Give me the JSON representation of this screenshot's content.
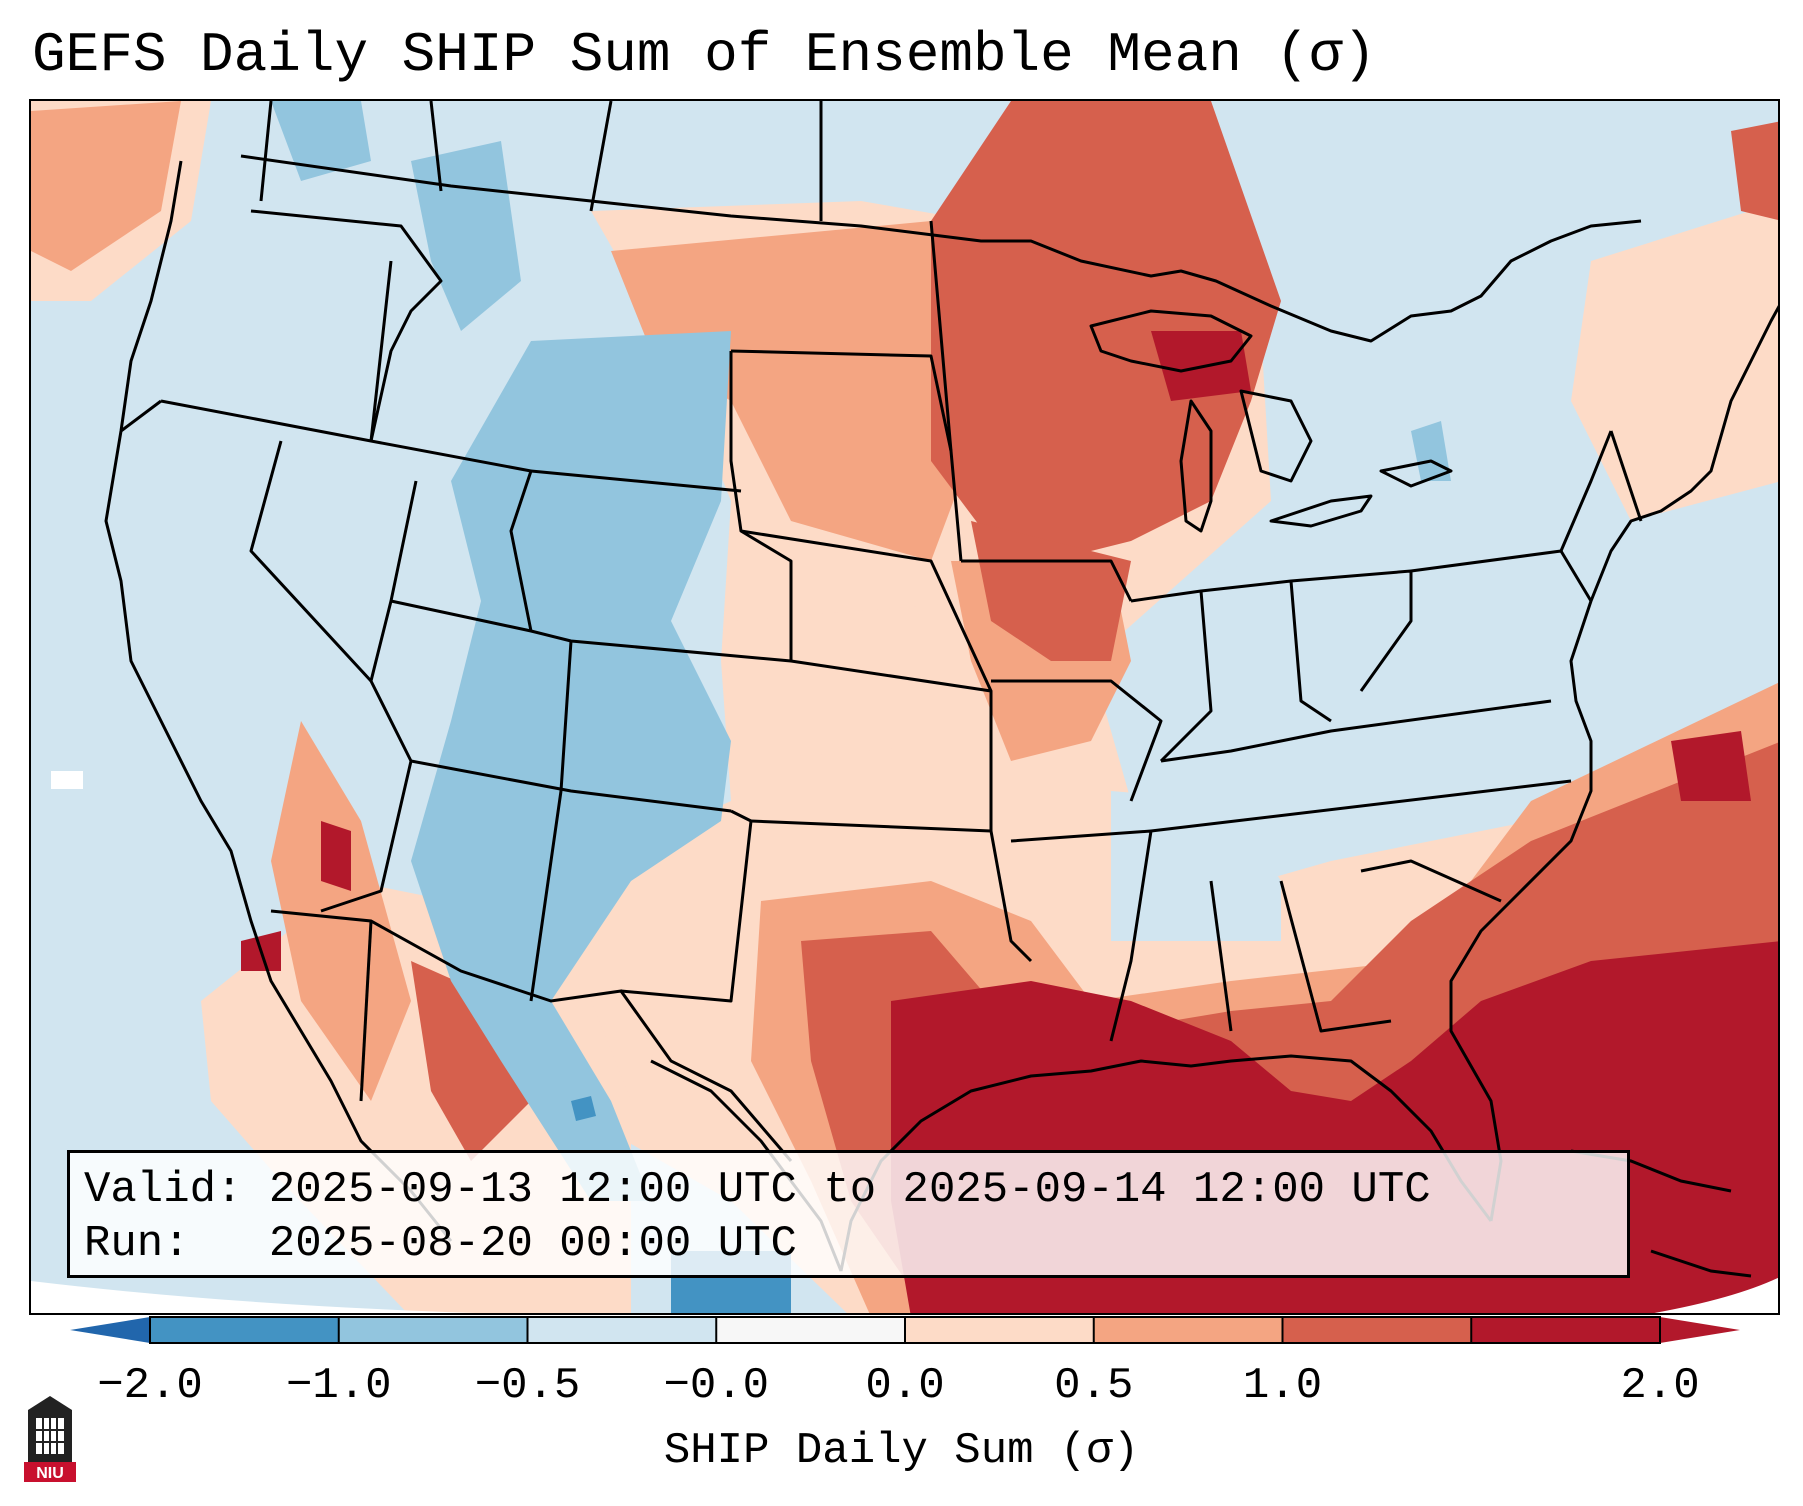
{
  "title": "GEFS Daily SHIP Sum of Ensemble Mean (σ)",
  "info": {
    "valid_label": "Valid:",
    "valid_value": "2025-09-13 12:00 UTC to 2025-09-14 12:00 UTC",
    "run_label": "Run:",
    "run_value": "2025-08-20 00:00 UTC"
  },
  "colorbar": {
    "label": "SHIP Daily Sum (σ)",
    "ticks": [
      "−2.0",
      "−1.0",
      "−0.5",
      "−0.0",
      "0.0",
      "0.5",
      "1.0",
      "2.0"
    ],
    "colors": [
      "#4393c3",
      "#92c5de",
      "#d1e5f0",
      "#f7f7f7",
      "#fddbc7",
      "#f4a582",
      "#d6604d",
      "#b2182b"
    ],
    "under_color": "#2166ac",
    "over_color": "#b2182b",
    "extend": "both"
  },
  "map": {
    "projection": "Lambert conformal, CONUS",
    "background_color": "#d1e5f0",
    "colors": {
      "neg2": "#4393c3",
      "neg1": "#92c5de",
      "neg05": "#d1e5f0",
      "pos0": "#fddbc7",
      "pos05": "#f4a582",
      "pos1": "#d6604d",
      "pos2": "#b2182b"
    }
  },
  "logo": {
    "text": "NIU"
  }
}
